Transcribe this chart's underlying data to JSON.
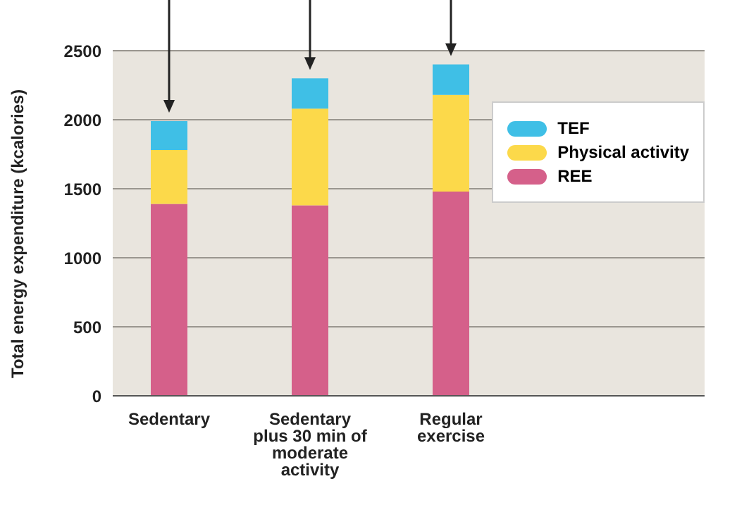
{
  "chart_data": {
    "type": "bar",
    "ylabel": "Total energy expenditure (kcalories)",
    "categories": [
      "Sedentary",
      "Sedentary plus 30 min of moderate activity",
      "Regular exercise"
    ],
    "series": [
      {
        "name": "REE",
        "color": "#d5608a",
        "values": [
          1390,
          1380,
          1480
        ]
      },
      {
        "name": "Physical activity",
        "color": "#fcd94a",
        "values": [
          390,
          700,
          700
        ]
      },
      {
        "name": "TEF",
        "color": "#3fbfe6",
        "values": [
          210,
          220,
          220
        ]
      }
    ],
    "stacked": true,
    "ylim": [
      0,
      2500
    ],
    "yticks": [
      0,
      500,
      1000,
      1500,
      2000,
      2500
    ],
    "grid": "y",
    "legend": "right"
  }
}
